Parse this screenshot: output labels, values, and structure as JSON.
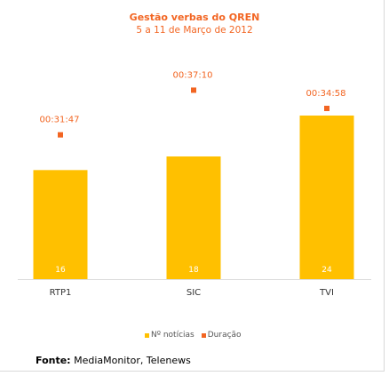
{
  "chart_data": {
    "type": "bar",
    "title": "Gestão verbas do QREN",
    "subtitle": "5 a 11 de Março de 2012",
    "categories": [
      "RTP1",
      "SIC",
      "TVI"
    ],
    "series": [
      {
        "name": "Nº notícias",
        "type": "bar",
        "values": [
          16,
          18,
          24
        ],
        "color": "#ffc000"
      },
      {
        "name": "Duração",
        "type": "marker",
        "values": [
          "00:31:47",
          "00:37:10",
          "00:34:58"
        ],
        "seconds": [
          1907,
          2230,
          2098
        ],
        "color": "#f26522"
      }
    ],
    "legend": "bottom-center",
    "grid": false
  },
  "source": {
    "label": "Fonte:",
    "text": " MediaMonitor, Telenews"
  }
}
